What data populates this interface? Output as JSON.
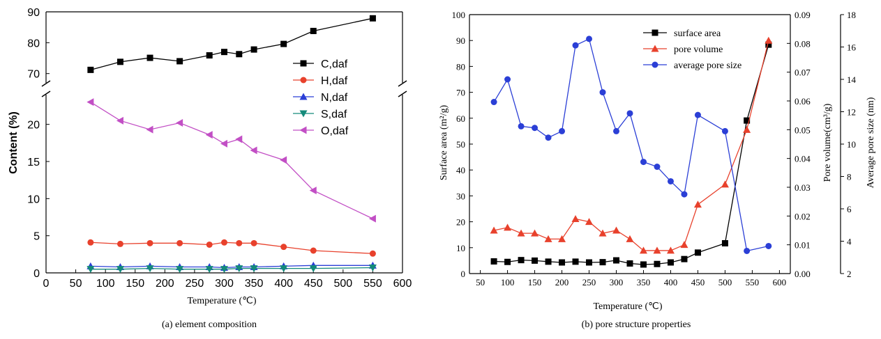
{
  "chart_data": [
    {
      "type": "line",
      "caption": "(a) element composition",
      "xlabel": "Temperature (℃)",
      "ylabel": "Content (%)",
      "xlim": [
        0,
        600
      ],
      "xticks": [
        0,
        50,
        100,
        150,
        200,
        250,
        300,
        350,
        400,
        450,
        500,
        550,
        600
      ],
      "y_axis_break": true,
      "ylim_lower": [
        0,
        24
      ],
      "yticks_lower": [
        0,
        5,
        10,
        15,
        20
      ],
      "ylim_upper": [
        67,
        90
      ],
      "yticks_upper": [
        70,
        80,
        90
      ],
      "grid": false,
      "legend_position": "right",
      "series": [
        {
          "name": "C,daf",
          "color": "#000000",
          "marker": "square",
          "x": [
            75,
            125,
            175,
            225,
            275,
            300,
            325,
            350,
            400,
            450,
            550
          ],
          "y": [
            71.2,
            73.8,
            75.1,
            74.0,
            75.9,
            77.0,
            76.3,
            77.8,
            79.6,
            83.8,
            87.9
          ]
        },
        {
          "name": "H,daf",
          "color": "#e8412c",
          "marker": "circle",
          "x": [
            75,
            125,
            175,
            225,
            275,
            300,
            325,
            350,
            400,
            450,
            550
          ],
          "y": [
            4.1,
            3.9,
            4.0,
            4.0,
            3.8,
            4.1,
            4.0,
            4.0,
            3.5,
            3.0,
            2.6
          ]
        },
        {
          "name": "N,daf",
          "color": "#2b3fd6",
          "marker": "triangle-up",
          "x": [
            75,
            125,
            175,
            225,
            275,
            300,
            325,
            350,
            400,
            450,
            550
          ],
          "y": [
            0.9,
            0.8,
            0.9,
            0.8,
            0.8,
            0.7,
            0.8,
            0.8,
            0.9,
            1.0,
            1.0
          ]
        },
        {
          "name": "S,daf",
          "color": "#148a7a",
          "marker": "triangle-down",
          "x": [
            75,
            125,
            175,
            225,
            275,
            300,
            325,
            350,
            400,
            450,
            550
          ],
          "y": [
            0.5,
            0.5,
            0.6,
            0.5,
            0.5,
            0.5,
            0.6,
            0.6,
            0.6,
            0.6,
            0.7
          ]
        },
        {
          "name": "O,daf",
          "color": "#c24fc5",
          "marker": "triangle-left",
          "x": [
            75,
            125,
            175,
            225,
            275,
            300,
            325,
            350,
            400,
            450,
            550
          ],
          "y": [
            23.0,
            20.5,
            19.3,
            20.2,
            18.6,
            17.4,
            18.0,
            16.5,
            15.2,
            11.1,
            7.3
          ]
        }
      ]
    },
    {
      "type": "line",
      "caption": "(b) pore structure properties",
      "xlabel": "Temperature (℃)",
      "xlim": [
        30,
        620
      ],
      "xticks": [
        50,
        100,
        150,
        200,
        250,
        300,
        350,
        400,
        450,
        500,
        550,
        600
      ],
      "grid": false,
      "legend_position": "top-right",
      "axes": {
        "left": {
          "label": "Surface area (m²/g)",
          "ylim": [
            0,
            100
          ],
          "yticks": [
            0,
            10,
            20,
            30,
            40,
            50,
            60,
            70,
            80,
            90,
            100
          ]
        },
        "right": {
          "label": "Pore volume(cm³/g)",
          "ylim": [
            0,
            0.09
          ],
          "yticks": [
            "0.00",
            "0.01",
            "0.02",
            "0.03",
            "0.04",
            "0.05",
            "0.06",
            "0.07",
            "0.08",
            "0.09"
          ]
        },
        "right2": {
          "label": "Average pore size (nm)",
          "ylim": [
            2,
            18
          ],
          "yticks": [
            2,
            4,
            6,
            8,
            10,
            12,
            14,
            16,
            18
          ]
        }
      },
      "series": [
        {
          "name": "surface area",
          "axis": "left",
          "color": "#000000",
          "marker": "square",
          "x": [
            75,
            100,
            125,
            150,
            175,
            200,
            225,
            250,
            275,
            300,
            325,
            350,
            375,
            400,
            425,
            450,
            500,
            540,
            580
          ],
          "y": [
            4.7,
            4.5,
            5.2,
            5.0,
            4.6,
            4.3,
            4.6,
            4.3,
            4.4,
            5.1,
            3.9,
            3.5,
            3.7,
            4.3,
            5.6,
            8.1,
            11.7,
            59.1,
            88.4
          ]
        },
        {
          "name": "pore volume",
          "axis": "right",
          "color": "#e8412c",
          "marker": "triangle-up",
          "x": [
            75,
            100,
            125,
            150,
            175,
            200,
            225,
            250,
            275,
            300,
            325,
            350,
            375,
            400,
            425,
            450,
            500,
            540,
            580
          ],
          "y": [
            0.015,
            0.016,
            0.014,
            0.014,
            0.012,
            0.012,
            0.019,
            0.018,
            0.014,
            0.015,
            0.012,
            0.008,
            0.008,
            0.008,
            0.01,
            0.024,
            0.031,
            0.05,
            0.081
          ]
        },
        {
          "name": "average pore size",
          "axis": "right2",
          "color": "#2b3fd6",
          "marker": "circle",
          "x": [
            75,
            100,
            125,
            150,
            175,
            200,
            225,
            250,
            275,
            300,
            325,
            350,
            375,
            400,
            425,
            450,
            500,
            540,
            580
          ],
          "y": [
            12.6,
            14.0,
            11.1,
            11.0,
            10.4,
            10.8,
            16.1,
            16.5,
            13.2,
            10.8,
            11.9,
            8.9,
            8.6,
            7.7,
            6.9,
            11.8,
            10.8,
            3.4,
            3.7
          ]
        }
      ]
    }
  ]
}
